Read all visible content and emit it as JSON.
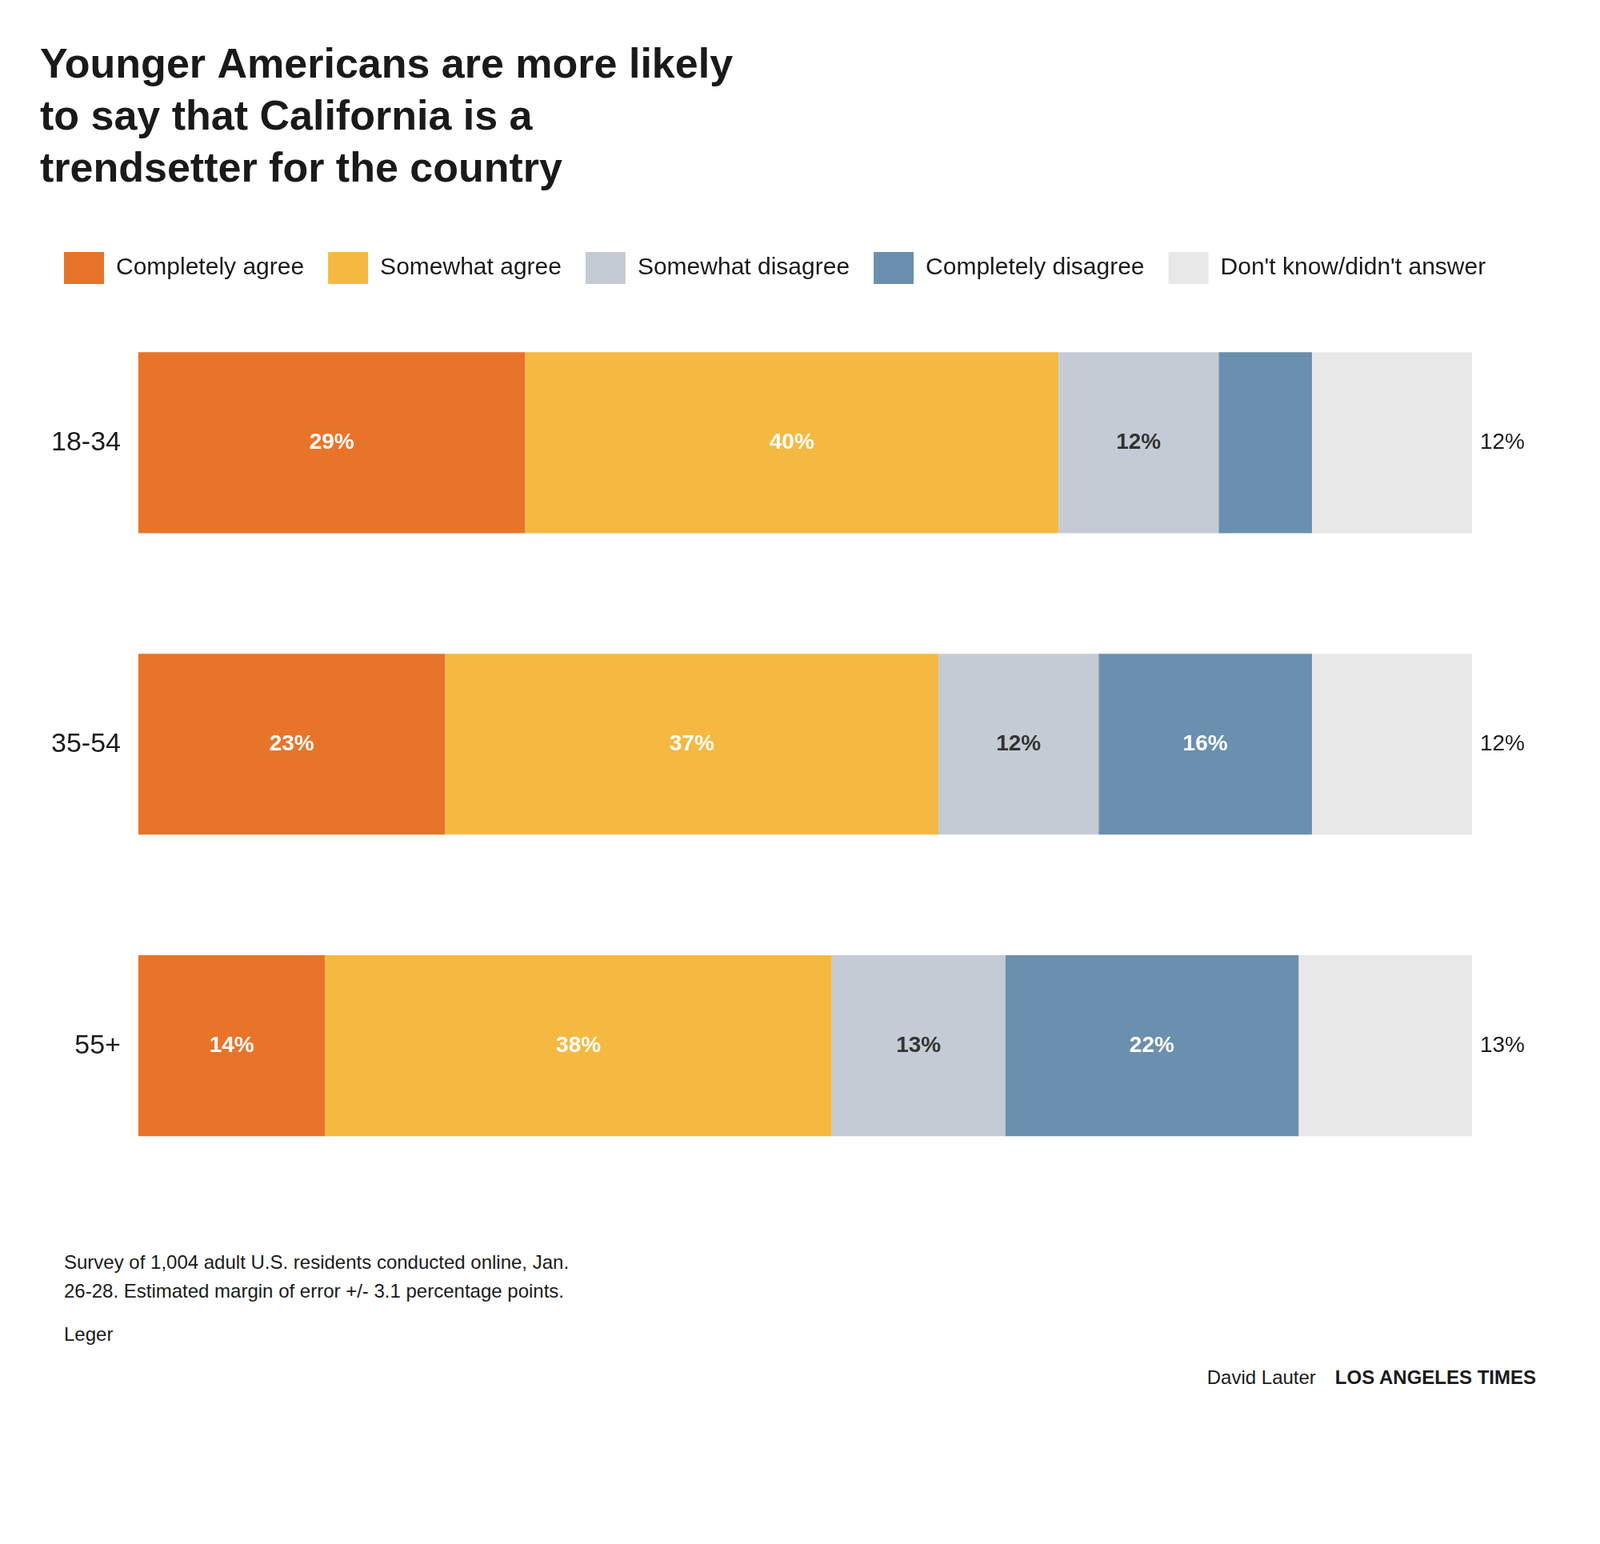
{
  "chart_data": {
    "type": "bar",
    "orientation": "horizontal",
    "stacked": true,
    "title": "Younger Americans are more likely\nto say that California is a\ntrendsetter for the country",
    "categories": [
      "18-34",
      "35-54",
      "55+"
    ],
    "series": [
      {
        "name": "Completely agree",
        "color": "#E8742A",
        "values": [
          29,
          23,
          14
        ],
        "value_labels": [
          "29%",
          "23%",
          "14%"
        ]
      },
      {
        "name": "Somewhat agree",
        "color": "#F5B942",
        "values": [
          40,
          37,
          38
        ],
        "value_labels": [
          "40%",
          "37%",
          "38%"
        ]
      },
      {
        "name": "Somewhat disagree",
        "color": "#C5CBD4",
        "values": [
          12,
          12,
          13
        ],
        "value_labels": [
          "12%",
          "12%",
          "13%"
        ]
      },
      {
        "name": "Completely disagree",
        "color": "#6B8FAE",
        "values": [
          7,
          16,
          22
        ],
        "value_labels": [
          null,
          "16%",
          "22%"
        ]
      },
      {
        "name": "Don't know/didn't answer",
        "color": "#E8E8E8",
        "values": [
          12,
          12,
          13
        ],
        "value_labels": [
          "12%",
          "12%",
          "13%"
        ]
      }
    ],
    "xlim": [
      0,
      106
    ],
    "grid": false,
    "legend": "top",
    "data_labels": true,
    "tick_labels": "y",
    "annotations": [
      "Survey of 1,004 adult U.S. residents conducted online, Jan.\n26-28. Estimated margin of error +/- 3.1 percentage points.",
      "Leger",
      "David Lauter",
      "LOS ANGELES TIMES"
    ]
  }
}
